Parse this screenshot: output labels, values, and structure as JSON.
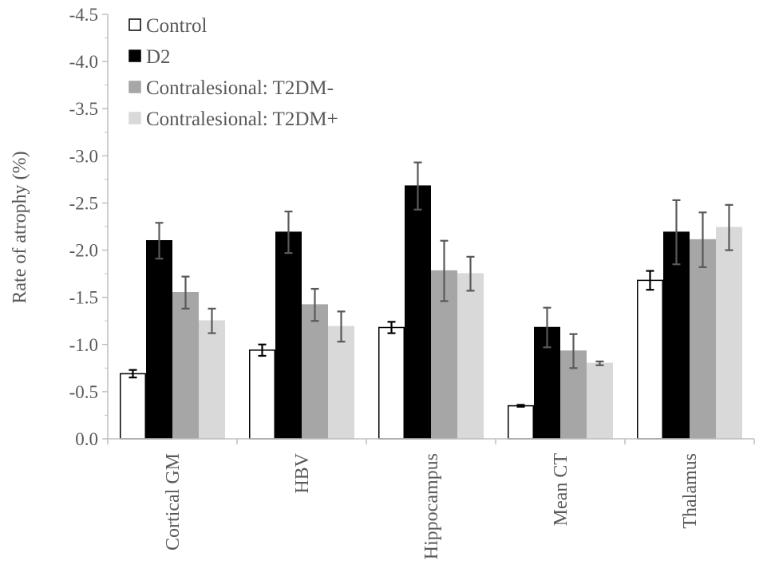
{
  "chart_data": {
    "type": "bar",
    "ylabel": "Rate of atrophy (%)",
    "xlabel": "",
    "ylim": [
      0,
      -4.5
    ],
    "y_axis_inverted": true,
    "ytick_step": 0.5,
    "yticks": [
      "0.0",
      "-0.5",
      "-1.0",
      "-1.5",
      "-2.0",
      "-2.5",
      "-3.0",
      "-3.5",
      "-4.0",
      "-4.5"
    ],
    "categories": [
      "Cortical GM",
      "HBV",
      "Hippocampus",
      "Mean CT",
      "Thalamus"
    ],
    "series": [
      {
        "name": "Control",
        "color": "#ffffff",
        "stroke": "#000000",
        "error_color": "#000000",
        "values": [
          -0.69,
          -0.94,
          -1.18,
          -0.35,
          -1.68
        ],
        "errors": [
          0.04,
          0.06,
          0.06,
          0.01,
          0.1
        ]
      },
      {
        "name": "D2",
        "color": "#000000",
        "stroke": "#000000",
        "error_color": "#595959",
        "values": [
          -2.1,
          -2.19,
          -2.68,
          -1.18,
          -2.19
        ],
        "errors": [
          0.19,
          0.22,
          0.25,
          0.21,
          0.34
        ]
      },
      {
        "name": "Contralesional: T2DM-",
        "color": "#a6a6a6",
        "stroke": "#a6a6a6",
        "error_color": "#595959",
        "values": [
          -1.55,
          -1.42,
          -1.78,
          -0.93,
          -2.11
        ],
        "errors": [
          0.17,
          0.17,
          0.32,
          0.18,
          0.29
        ]
      },
      {
        "name": "Contralesional: T2DM+",
        "color": "#d9d9d9",
        "stroke": "#d9d9d9",
        "error_color": "#595959",
        "values": [
          -1.25,
          -1.19,
          -1.75,
          -0.8,
          -2.24
        ],
        "errors": [
          0.13,
          0.16,
          0.18,
          0.02,
          0.24
        ]
      }
    ],
    "legend_position": "top-left",
    "grid": false
  }
}
